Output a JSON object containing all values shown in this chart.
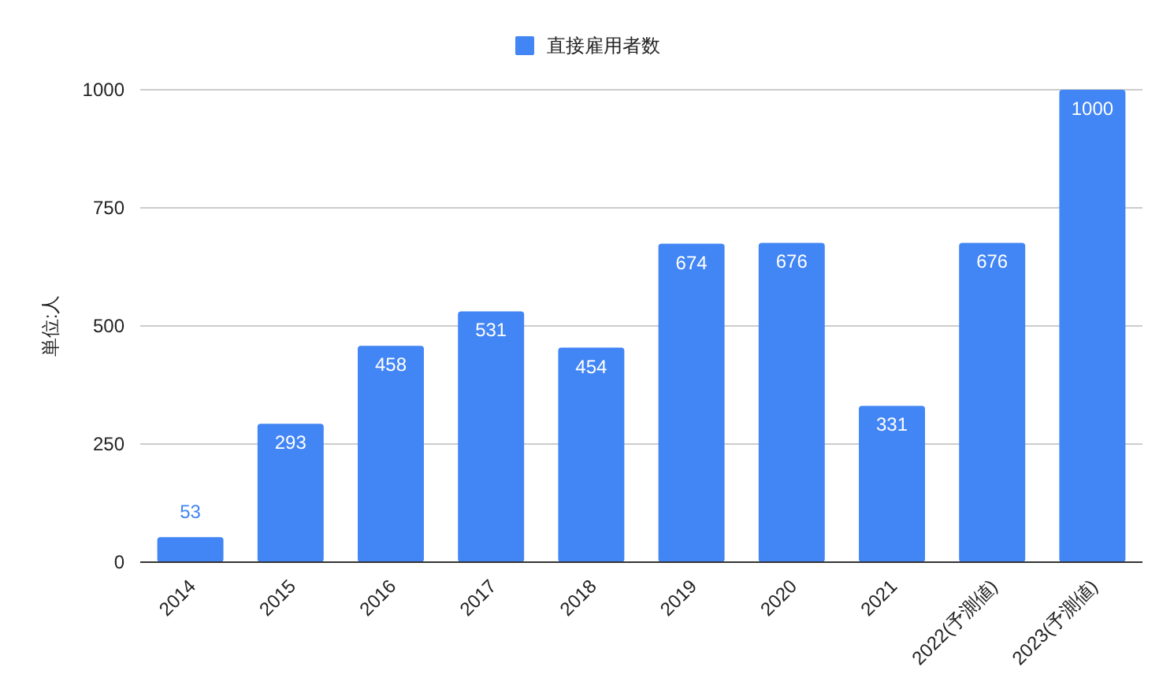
{
  "chart_data": {
    "type": "bar",
    "ylabel": "単位:人",
    "categories": [
      "2014",
      "2015",
      "2016",
      "2017",
      "2018",
      "2019",
      "2020",
      "2021",
      "2022(予測値)",
      "2023(予測値)"
    ],
    "series": [
      {
        "name": "直接雇用者数",
        "color": "#4285f4",
        "values": [
          53,
          293,
          458,
          531,
          454,
          674,
          676,
          331,
          676,
          1000
        ]
      }
    ],
    "ylim": [
      0,
      1000
    ],
    "yticks": [
      0,
      250,
      500,
      750,
      1000
    ],
    "grid": "y",
    "legend": "top",
    "data_labels": true
  }
}
